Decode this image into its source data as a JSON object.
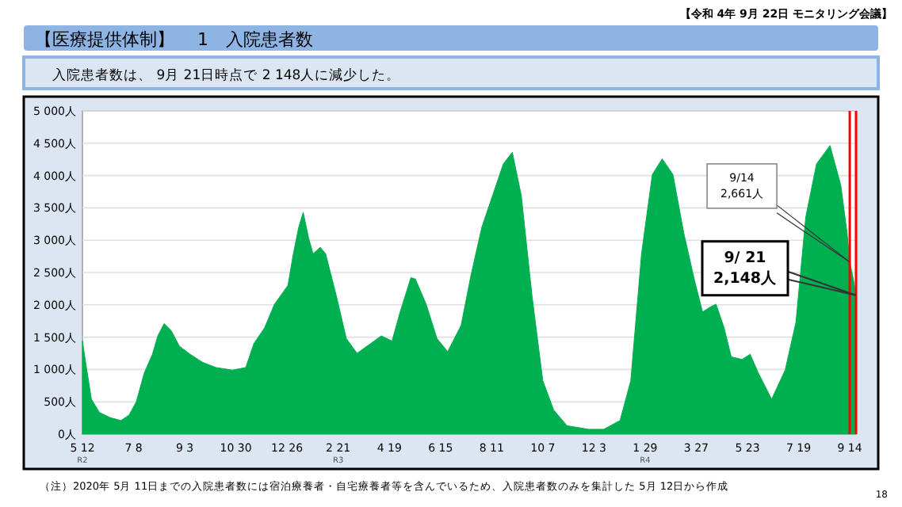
{
  "chart_data": {
    "type": "area",
    "title": "【医療提供体制】　 1　入院患者数",
    "subtitle": "入院患者数は、 9月 21日時点で 2 148人に減少した。",
    "x": [
      "2020-05-12",
      "2020-05-16",
      "2020-05-22",
      "2020-05-31",
      "2020-06-12",
      "2020-06-24",
      "2020-07-03",
      "2020-07-11",
      "2020-07-20",
      "2020-07-29",
      "2020-08-04",
      "2020-08-11",
      "2020-08-19",
      "2020-08-28",
      "2020-09-09",
      "2020-09-23",
      "2020-10-08",
      "2020-10-26",
      "2020-11-10",
      "2020-11-19",
      "2020-12-01",
      "2020-12-12",
      "2020-12-27",
      "2021-01-02",
      "2021-01-08",
      "2021-01-13",
      "2021-01-19",
      "2021-01-24",
      "2021-02-01",
      "2021-02-07",
      "2021-02-19",
      "2021-03-02",
      "2021-03-14",
      "2021-03-29",
      "2021-04-10",
      "2021-04-22",
      "2021-05-01",
      "2021-05-13",
      "2021-05-18",
      "2021-05-30",
      "2021-06-11",
      "2021-06-23",
      "2021-07-08",
      "2021-07-19",
      "2021-07-31",
      "2021-08-12",
      "2021-08-24",
      "2021-09-03",
      "2021-09-13",
      "2021-09-25",
      "2021-10-07",
      "2021-10-19",
      "2021-11-03",
      "2021-11-27",
      "2021-12-14",
      "2022-01-01",
      "2022-01-13",
      "2022-01-25",
      "2022-02-06",
      "2022-02-17",
      "2022-03-01",
      "2022-03-13",
      "2022-03-25",
      "2022-04-03",
      "2022-04-12",
      "2022-04-18",
      "2022-04-27",
      "2022-05-05",
      "2022-05-17",
      "2022-05-26",
      "2022-06-04",
      "2022-06-19",
      "2022-07-04",
      "2022-07-16",
      "2022-07-27",
      "2022-08-08",
      "2022-08-23",
      "2022-09-04",
      "2022-09-11",
      "2022-09-14",
      "2022-09-18",
      "2022-09-21"
    ],
    "series": [
      {
        "color": "#00b050",
        "values": [
          1440,
          1070,
          540,
          335,
          255,
          210,
          295,
          500,
          950,
          1235,
          1520,
          1710,
          1600,
          1360,
          1235,
          1110,
          1030,
          990,
          1030,
          1400,
          1645,
          2010,
          2300,
          2790,
          3200,
          3430,
          3035,
          2790,
          2890,
          2790,
          2135,
          1480,
          1250,
          1400,
          1520,
          1440,
          1890,
          2420,
          2400,
          2010,
          1480,
          1275,
          1685,
          2460,
          3200,
          3690,
          4180,
          4360,
          3690,
          2135,
          825,
          375,
          130,
          75,
          75,
          210,
          825,
          2790,
          4015,
          4260,
          4015,
          3115,
          2380,
          1890,
          1970,
          2010,
          1645,
          1195,
          1155,
          1235,
          950,
          540,
          990,
          1725,
          3360,
          4180,
          4465,
          3850,
          3115,
          2661,
          2400,
          2148
        ]
      }
    ],
    "xlim": [
      "2020-05-12",
      "2022-09-21"
    ],
    "xticks": [
      {
        "value": "2020-05-12",
        "label": "5 12\nR2"
      },
      {
        "value": "2020-07-08",
        "label": "7 8"
      },
      {
        "value": "2020-09-03",
        "label": "9 3"
      },
      {
        "value": "2020-10-30",
        "label": "10 30"
      },
      {
        "value": "2020-12-26",
        "label": "12 26"
      },
      {
        "value": "2021-02-21",
        "label": "2 21\nR3"
      },
      {
        "value": "2021-04-19",
        "label": "4 19"
      },
      {
        "value": "2021-06-15",
        "label": "6 15"
      },
      {
        "value": "2021-08-11",
        "label": "8 11"
      },
      {
        "value": "2021-10-07",
        "label": "10 7"
      },
      {
        "value": "2021-12-03",
        "label": "12 3"
      },
      {
        "value": "2022-01-29",
        "label": "1 29\nR4"
      },
      {
        "value": "2022-03-27",
        "label": "3 27"
      },
      {
        "value": "2022-05-23",
        "label": "5 23"
      },
      {
        "value": "2022-07-19",
        "label": "7 19"
      },
      {
        "value": "2022-09-14",
        "label": "9 14"
      }
    ],
    "ylim": [
      0,
      5000
    ],
    "yticks": [
      {
        "value": 0,
        "label": "0人"
      },
      {
        "value": 500,
        "label": "500人"
      },
      {
        "value": 1000,
        "label": "1 000人"
      },
      {
        "value": 1500,
        "label": "1 500人"
      },
      {
        "value": 2000,
        "label": "2 000人"
      },
      {
        "value": 2500,
        "label": "2 500人"
      },
      {
        "value": 3000,
        "label": "3 000人"
      },
      {
        "value": 3500,
        "label": "3 500人"
      },
      {
        "value": 4000,
        "label": "4 000人"
      },
      {
        "value": 4500,
        "label": "4 500人"
      },
      {
        "value": 5000,
        "label": "5 000人"
      }
    ],
    "grid": "y",
    "ref_lines": [
      {
        "axis": "x",
        "value": "2022-09-14",
        "color": "#ff0000"
      },
      {
        "axis": "x",
        "value": "2022-09-21",
        "color": "#ff0000"
      }
    ],
    "annotations": [
      "【令和 4年 9月 22日 モニタリング会議】",
      {
        "text": "9/14\n2,661人",
        "x": "2022-09-14",
        "y": 2661
      },
      {
        "text": "9/ 21\n2,148人",
        "x": "2022-09-21",
        "y": 2148
      },
      "（注）2020年 5月 11日までの入院患者数には宿泊療養者・自宅療養者等を含んでいるため、入院患者数のみを集計した 5月 12日から作成",
      "18"
    ]
  }
}
